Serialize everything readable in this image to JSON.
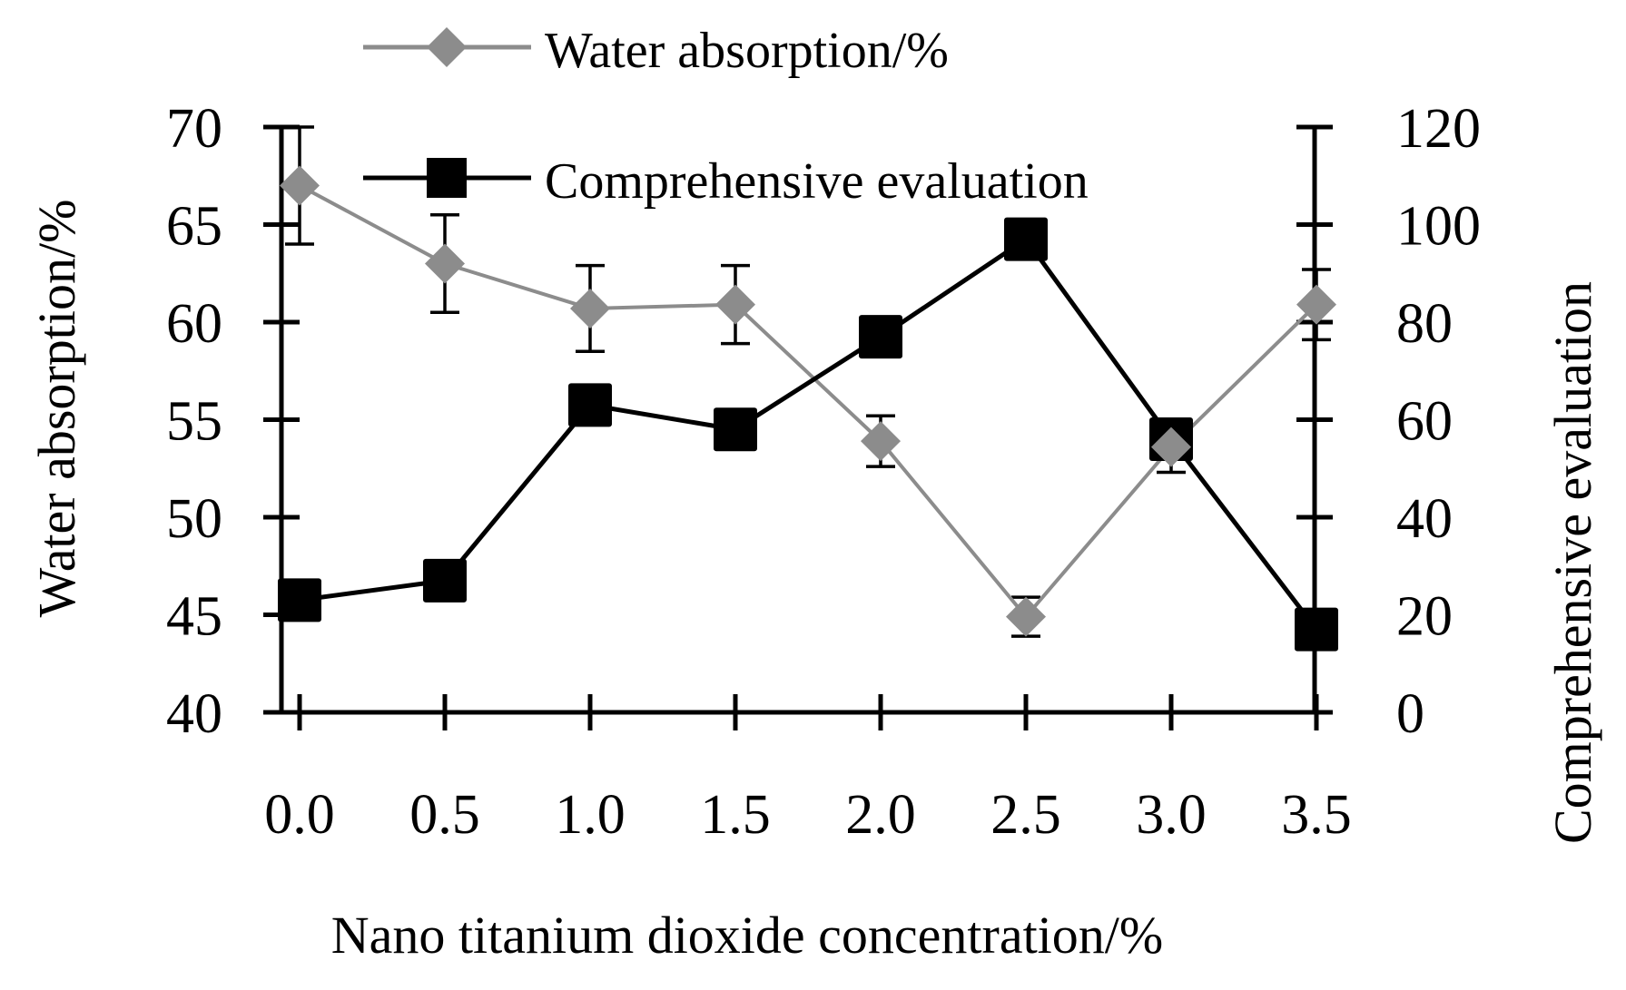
{
  "colors": {
    "water_series": "#8c8c8c",
    "comprehensive_series": "#000000",
    "axis": "#000000",
    "background": "#ffffff"
  },
  "chart_data": {
    "type": "line",
    "title": "",
    "xlabel": "Nano titanium dioxide concentration/%",
    "ylabel_left": "Water absorption/%",
    "ylabel_right": "Comprehensive evaluation",
    "x_tick_labels": [
      "0.0",
      "0.5",
      "1.0",
      "1.5",
      "2.0",
      "2.5",
      "3.0",
      "3.5"
    ],
    "x": [
      0.0,
      0.5,
      1.0,
      1.5,
      2.0,
      2.5,
      3.0,
      3.5
    ],
    "y_left_ticks": [
      "40",
      "45",
      "50",
      "55",
      "60",
      "65",
      "70"
    ],
    "y_left_lim": [
      40,
      70
    ],
    "y_right_ticks": [
      "0",
      "20",
      "40",
      "60",
      "80",
      "100",
      "120"
    ],
    "y_right_lim": [
      0,
      120
    ],
    "grid": false,
    "legend_position": "top-center",
    "series": [
      {
        "name": "Water absorption/%",
        "axis": "left",
        "marker": "diamond",
        "color": "#8c8c8c",
        "values": [
          67.0,
          63.0,
          60.7,
          60.9,
          53.9,
          44.9,
          53.6,
          60.9
        ],
        "error": [
          3.0,
          2.5,
          2.2,
          2.0,
          1.3,
          1.0,
          1.3,
          1.8
        ]
      },
      {
        "name": "Comprehensive evaluation",
        "axis": "right",
        "marker": "square",
        "color": "#000000",
        "values": [
          23,
          27,
          63,
          58,
          77,
          97,
          56,
          17
        ]
      }
    ]
  }
}
